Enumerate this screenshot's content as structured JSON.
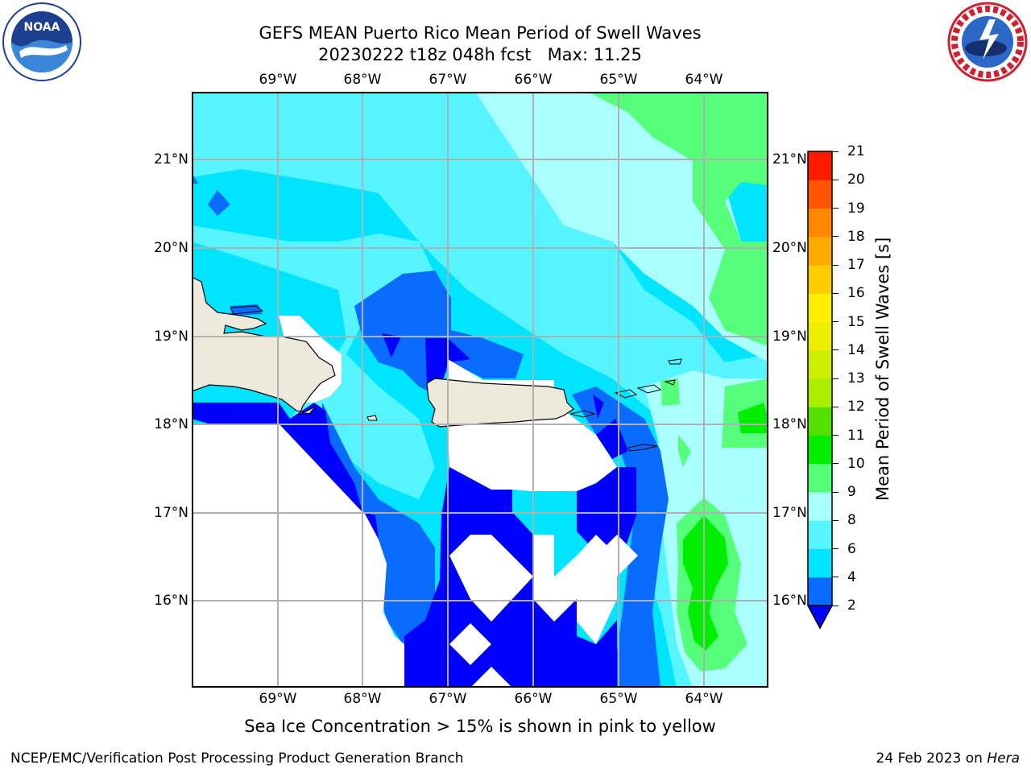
{
  "header": {
    "title_line1": "GEFS MEAN Puerto Rico Mean Period of Swell Waves",
    "title_line2": "20230222 t18z 048h fcst   Max: 11.25"
  },
  "logos": {
    "left": {
      "icon": "noaa-logo-icon",
      "text": "NOAA"
    },
    "right": {
      "icon": "nws-logo-icon",
      "text": "NATIONAL WEATHER SERVICE"
    }
  },
  "map": {
    "lon_ticks": [
      "69°W",
      "68°W",
      "67°W",
      "66°W",
      "65°W",
      "64°W"
    ],
    "lat_ticks": [
      "21°N",
      "20°N",
      "19°N",
      "18°N",
      "17°N",
      "16°N"
    ],
    "land_color": "#eeeadb",
    "grid_color": "#b0b0b0"
  },
  "colorbar": {
    "label": "Mean Period of Swell Waves [s]",
    "ticks": [
      "2",
      "4",
      "6",
      "8",
      "9",
      "10",
      "11",
      "12",
      "13",
      "14",
      "15",
      "16",
      "17",
      "18",
      "19",
      "20",
      "21"
    ],
    "colors": {
      "under": "#0000ff",
      "2-4": "#0a6cff",
      "4-6": "#00e5ff",
      "6-8": "#55f4ff",
      "8-9": "#aaffff",
      "9-10": "#55ff7a",
      "10-11": "#00ee00",
      "11-12": "#55e000",
      "12-13": "#aaee00",
      "13-14": "#ccee00",
      "14-15": "#eeee00",
      "15-16": "#ffee00",
      "16-17": "#ffcc00",
      "17-18": "#ffaa00",
      "18-19": "#ff8800",
      "19-20": "#ff5500",
      "20-21": "#ff1a00"
    }
  },
  "note": "Sea Ice Concentration > 15% is shown in pink to yellow",
  "footer": {
    "left": "NCEP/EMC/Verification Post Processing Product Generation Branch",
    "right_prefix": "24 Feb 2023 on",
    "right_host": "Hera"
  }
}
